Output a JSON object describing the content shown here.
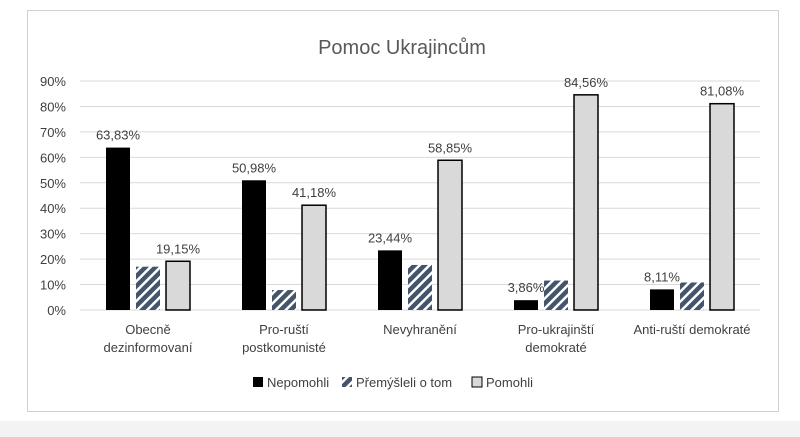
{
  "chart_data": {
    "type": "bar",
    "title": "Pomoc Ukrajincům",
    "categories": [
      [
        "Obecně",
        "dezinformovaní"
      ],
      [
        "Pro-ruští",
        "postkomunisté"
      ],
      [
        "Nevyhranění"
      ],
      [
        "Pro-ukrajinští",
        "demokraté"
      ],
      [
        "Anti-ruští demokraté"
      ]
    ],
    "series": [
      {
        "name": "Nepomohli",
        "values": [
          63.83,
          50.98,
          23.44,
          3.86,
          8.11
        ],
        "labels": [
          "63,83%",
          "50,98%",
          "23,44%",
          "3,86%",
          "8,11%"
        ],
        "color": "#000000",
        "pattern": "solid"
      },
      {
        "name": "Přemýšleli o tom",
        "values": [
          17.02,
          7.84,
          17.71,
          11.58,
          10.81
        ],
        "labels": [],
        "color": "#44546a",
        "pattern": "diagonal-stripes"
      },
      {
        "name": "Pomohli",
        "values": [
          19.15,
          41.18,
          58.85,
          84.56,
          81.08
        ],
        "labels": [
          "19,15%",
          "41,18%",
          "58,85%",
          "84,56%",
          "81,08%"
        ],
        "color": "#d9d9d9",
        "pattern": "solid-outlined"
      }
    ],
    "yticks": [
      "0%",
      "10%",
      "20%",
      "30%",
      "40%",
      "50%",
      "60%",
      "70%",
      "80%",
      "90%"
    ],
    "ylim": [
      0,
      90
    ],
    "grid": true,
    "legend": "bottom"
  }
}
